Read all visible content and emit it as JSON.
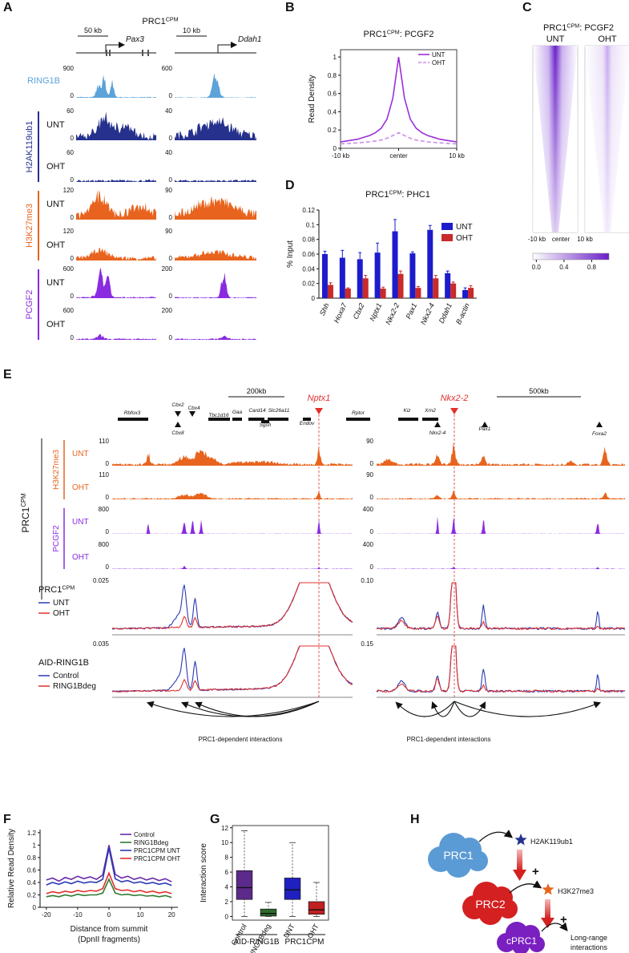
{
  "panels": {
    "A": {
      "letter": "A",
      "title": "PRC1",
      "title_sup": "CPM",
      "scale_bars": [
        "50 kb",
        "10 kb"
      ],
      "genes": [
        "Pax3",
        "Ddah1"
      ],
      "zero": "0",
      "groups": [
        {
          "name": "RING1B",
          "color": "#5ba3d9",
          "tracks": [
            {
              "max": [
                900,
                600
              ]
            }
          ]
        },
        {
          "name": "H2AK119ub1",
          "color": "#25318c",
          "tracks": [
            {
              "condition": "UNT",
              "max": [
                60,
                40
              ]
            },
            {
              "condition": "OHT",
              "max": [
                60,
                40
              ]
            }
          ]
        },
        {
          "name": "H3K27me3",
          "color": "#e8641e",
          "tracks": [
            {
              "condition": "UNT",
              "max": [
                120,
                90
              ]
            },
            {
              "condition": "OHT",
              "max": [
                120,
                90
              ]
            }
          ]
        },
        {
          "name": "PCGF2",
          "color": "#8a2be2",
          "tracks": [
            {
              "condition": "UNT",
              "max": [
                600,
                200
              ]
            },
            {
              "condition": "OHT",
              "max": [
                600,
                200
              ]
            }
          ]
        }
      ]
    },
    "C": {
      "letter": "C",
      "title": "PRC1",
      "title_sup": "CPM",
      "title_rest": ": PCGF2",
      "conditions": [
        "UNT",
        "OHT"
      ],
      "xlabels": [
        "-10 kb",
        "center",
        "10 kb"
      ],
      "colorbar_lim": [
        -0.05,
        1.05
      ],
      "colorbar_ticks": [
        {
          "value": 0,
          "label": "0.0"
        },
        0.4,
        0.8
      ]
    },
    "E": {
      "letter": "E",
      "side_label": "PRC1",
      "side_label_sup": "CPM",
      "zero": "0",
      "interactions_label": "PRC1-dependent interactions",
      "regions": [
        {
          "scale_bar": "200kb",
          "highlight": "Nptx1",
          "genes": [
            "Rbfox3",
            "Cbx2",
            "Cbx4",
            "Cbx8",
            "Tbc1d16",
            "Gaa",
            "Card14",
            "Slc26a11",
            "Sgsh",
            "Endov",
            "Rptor"
          ]
        },
        {
          "scale_bar": "500kb",
          "highlight": "Nkx2-2",
          "genes": [
            "Kiz",
            "Xrn2",
            "Nkx2-4",
            "Pax1",
            "Foxa2"
          ]
        }
      ],
      "track_groups": [
        {
          "name": "H3K27me3",
          "color": "#e8641e",
          "tracks": [
            {
              "condition": "UNT",
              "max": [
                110,
                90
              ]
            },
            {
              "condition": "OHT",
              "max": [
                110,
                90
              ]
            }
          ]
        },
        {
          "name": "PCGF2",
          "color": "#8a2be2",
          "tracks": [
            {
              "condition": "UNT",
              "max": [
                800,
                400
              ]
            },
            {
              "condition": "OHT",
              "max": [
                800,
                400
              ]
            }
          ]
        }
      ],
      "capture": [
        {
          "title": "PRC1",
          "title_sup": "CPM",
          "max": [
            0.025,
            {
              "value": 0.1,
              "label": "0.10"
            }
          ],
          "legend": [
            {
              "name": "UNT",
              "color": "#2b3bb5"
            },
            {
              "name": "OHT",
              "color": "#e0312e"
            }
          ]
        },
        {
          "title": "AID-RING1B",
          "max": [
            0.035,
            0.15
          ],
          "legend": [
            {
              "name": "Control",
              "color": "#2b3bb5"
            },
            {
              "name": "RING1Bdeg",
              "color": "#e0312e"
            }
          ]
        }
      ]
    },
    "H": {
      "letter": "H",
      "nodes": [
        "PRC1",
        "PRC2",
        "cPRC1"
      ],
      "marks": [
        "H2AK119ub1",
        "H3K27me3"
      ],
      "plus": "+",
      "output": [
        "Long-range",
        "interactions"
      ]
    }
  },
  "chart_data": [
    {
      "type": "line",
      "panel": "B",
      "title": "PRC1",
      "title_sup": "CPM",
      "title_rest": ": PCGF2",
      "ylabel": "Read Density",
      "x": [
        -10,
        -9,
        -8,
        -7,
        -6,
        -5,
        -4,
        -3,
        -2,
        -1,
        0,
        1,
        2,
        3,
        4,
        5,
        6,
        7,
        8,
        9,
        10
      ],
      "xlim": [
        -10,
        10
      ],
      "xticks": [
        {
          "value": -10,
          "label": "-10 kb"
        },
        {
          "value": 0,
          "label": "center"
        },
        {
          "value": 10,
          "label": "10 kb"
        }
      ],
      "ylim": [
        0,
        1.08
      ],
      "yticks": [
        0,
        0.2,
        0.4,
        0.6,
        0.8,
        1
      ],
      "legend": "upper right",
      "series": [
        {
          "name": "UNT",
          "color": "#9b30d9",
          "values": [
            0.07,
            0.08,
            0.09,
            0.1,
            0.12,
            0.14,
            0.17,
            0.22,
            0.32,
            0.55,
            1.0,
            0.55,
            0.32,
            0.22,
            0.17,
            0.14,
            0.12,
            0.1,
            0.09,
            0.08,
            0.07
          ]
        },
        {
          "name": "OHT",
          "color": "#c98ee8",
          "dash": true,
          "values": [
            0.05,
            0.05,
            0.055,
            0.06,
            0.065,
            0.07,
            0.08,
            0.09,
            0.11,
            0.14,
            0.17,
            0.14,
            0.11,
            0.09,
            0.08,
            0.07,
            0.065,
            0.06,
            0.055,
            0.05,
            0.05
          ]
        }
      ]
    },
    {
      "type": "bar",
      "panel": "D",
      "title": "PRC1",
      "title_sup": "CPM",
      "title_rest": ": PHC1",
      "ylabel": "% Input",
      "categories": [
        "Shh",
        "Hoxa7",
        "Cbx2",
        "Nptx1",
        "Nkx2-2",
        "Pax1",
        "Nkx2-4",
        "Ddah1",
        "B-actin"
      ],
      "ylim": [
        0,
        0.12
      ],
      "yticks": [
        0,
        0.02,
        0.04,
        0.06,
        0.08,
        0.1,
        0.12
      ],
      "legend": "upper right",
      "series": [
        {
          "name": "UNT",
          "color": "#1c1ccc",
          "values": [
            0.06,
            0.055,
            0.053,
            0.062,
            0.091,
            0.061,
            0.093,
            0.034,
            0.011
          ],
          "errors": [
            0.004,
            0.01,
            0.009,
            0.013,
            0.016,
            0.002,
            0.006,
            0.003,
            0.003
          ]
        },
        {
          "name": "OHT",
          "color": "#c92a2a",
          "values": [
            0.018,
            0.013,
            0.027,
            0.013,
            0.033,
            0.014,
            0.027,
            0.02,
            0.014
          ],
          "errors": [
            0.003,
            0.001,
            0.004,
            0.002,
            0.004,
            0.002,
            0.004,
            0.002,
            0.003
          ]
        }
      ]
    },
    {
      "type": "line",
      "panel": "F",
      "ylabel": "Relative Read Density",
      "xlabel": [
        "Distance from summit",
        "(DpnII fragments)"
      ],
      "x": [
        -20,
        -18,
        -16,
        -14,
        -12,
        -10,
        -8,
        -6,
        -4,
        -2,
        0,
        2,
        4,
        6,
        8,
        10,
        12,
        14,
        16,
        18,
        20
      ],
      "xlim": [
        -22,
        22
      ],
      "xticks": [
        -20,
        -10,
        0,
        10,
        20
      ],
      "ylim": [
        0,
        1.25
      ],
      "yticks": [
        0,
        0.2,
        0.4,
        0.6,
        0.8,
        1,
        1.2
      ],
      "legend": "upper right",
      "series": [
        {
          "name": "Control",
          "color": "#6a2aa8",
          "values": [
            0.44,
            0.47,
            0.42,
            0.48,
            0.45,
            0.5,
            0.46,
            0.49,
            0.45,
            0.52,
            1.0,
            0.53,
            0.47,
            0.5,
            0.45,
            0.48,
            0.44,
            0.47,
            0.43,
            0.46,
            0.41
          ]
        },
        {
          "name": "RING1Bdeg",
          "color": "#2e7d32",
          "values": [
            0.17,
            0.19,
            0.17,
            0.2,
            0.18,
            0.21,
            0.19,
            0.2,
            0.2,
            0.23,
            0.45,
            0.23,
            0.2,
            0.21,
            0.19,
            0.2,
            0.18,
            0.19,
            0.17,
            0.19,
            0.16
          ]
        },
        {
          "name": "PRC1CPM UNT",
          "color": "#2b3bb5",
          "values": [
            0.36,
            0.4,
            0.37,
            0.41,
            0.38,
            0.42,
            0.39,
            0.41,
            0.4,
            0.45,
            0.95,
            0.46,
            0.41,
            0.43,
            0.39,
            0.41,
            0.38,
            0.4,
            0.37,
            0.39,
            0.35
          ]
        },
        {
          "name": "PRC1CPM OHT",
          "color": "#e0312e",
          "values": [
            0.22,
            0.25,
            0.23,
            0.26,
            0.24,
            0.27,
            0.25,
            0.27,
            0.26,
            0.3,
            0.55,
            0.3,
            0.27,
            0.28,
            0.25,
            0.27,
            0.24,
            0.26,
            0.23,
            0.25,
            0.22
          ]
        }
      ]
    },
    {
      "type": "box",
      "panel": "G",
      "ylabel": "Interaction score",
      "categories": [
        "Control",
        "RING1Bdeg",
        "UNT",
        "OHT"
      ],
      "colors": [
        "#5b2a8a",
        "#2e6b2e",
        "#2020c0",
        "#c02020"
      ],
      "group_labels": [
        "AID-RING1B",
        "PRC1CPM"
      ],
      "ylim": [
        -0.5,
        12.3
      ],
      "yticks": [
        0,
        2,
        4,
        6,
        8,
        10,
        12
      ],
      "boxes": [
        {
          "whisker_low": 0,
          "q1": 2.3,
          "median": 3.9,
          "q3": 6.2,
          "whisker_high": 11.6
        },
        {
          "whisker_low": 0,
          "q1": 0.05,
          "median": 0.4,
          "q3": 1.0,
          "whisker_high": 1.9
        },
        {
          "whisker_low": 0,
          "q1": 2.3,
          "median": 3.6,
          "q3": 5.2,
          "whisker_high": 10.0
        },
        {
          "whisker_low": 0,
          "q1": 0.3,
          "median": 0.9,
          "q3": 2.0,
          "whisker_high": 4.6
        }
      ]
    }
  ]
}
